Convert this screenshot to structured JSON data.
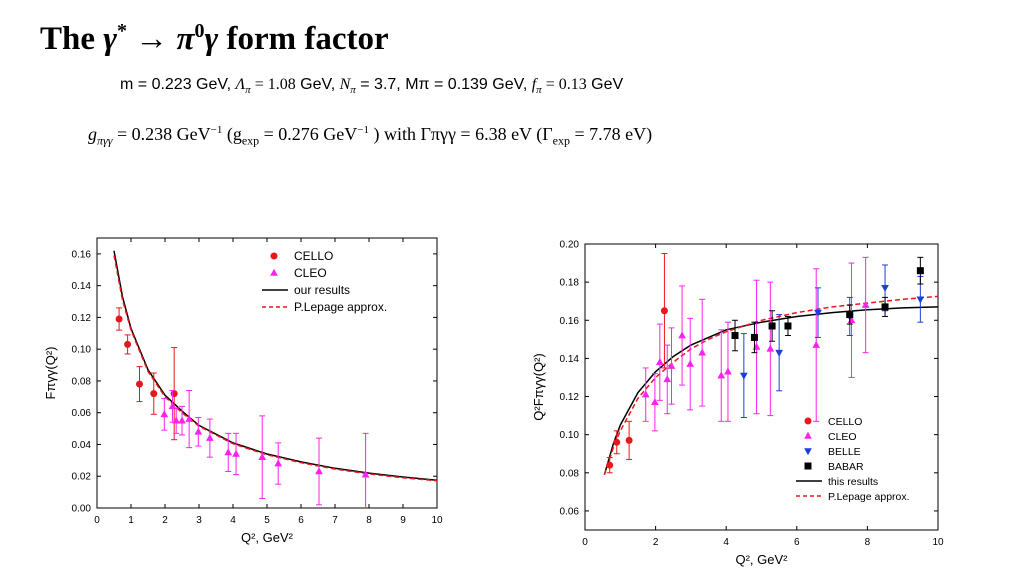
{
  "header": {
    "title_prefix": "The",
    "title_gamma_star": "γ",
    "title_star": "*",
    "title_arrow": "→",
    "title_pi": "π",
    "title_zero": "0",
    "title_gamma": "γ",
    "title_suffix": "form factor"
  },
  "params": {
    "m": "m = 0.223 GeV,",
    "lambda_sym": "Λ",
    "lambda_sub": "π",
    "lambda_val": " = 1.08",
    "lambda_unit": "GeV,",
    "n_sym": "N",
    "n_sub": "π",
    "n_val": " = 3.7,",
    "mpi": "Mπ = 0.139 GeV,",
    "f_sym": "f",
    "f_sub": "π",
    "f_val": " = 0.13",
    "f_unit": "GeV"
  },
  "coupling": {
    "g_sym": "g",
    "g_sub": "πγγ",
    "g_val": " = 0.238 GeV",
    "g_exp_sup": "−1",
    "gexp_open": " (g",
    "gexp_sub": "exp",
    "gexp_val": " = 0.276 GeV",
    "gexp_sup": "−1",
    "gamma_text": " ) with Γπγγ = 6.38 eV (Γ",
    "gamma_sub": "exp",
    "gamma_val": " = 7.78 eV)"
  },
  "chart_data": [
    {
      "type": "scatter",
      "title": "",
      "xlabel": "Q², GeV²",
      "ylabel": "Fπγγ(Q²)",
      "xlim": [
        0,
        10
      ],
      "ylim": [
        0,
        0.17
      ],
      "xticks": [
        "0",
        "1",
        "2",
        "3",
        "4",
        "5",
        "6",
        "7",
        "8",
        "9",
        "10"
      ],
      "yticks": [
        "0.00",
        "0.02",
        "0.04",
        "0.06",
        "0.08",
        "0.10",
        "0.12",
        "0.14",
        "0.16"
      ],
      "legend": [
        "CELLO",
        "CLEO",
        "our results",
        "P.Lepage approx."
      ],
      "legend_position": "top-right",
      "series": [
        {
          "name": "CELLO",
          "marker": "circle",
          "color": "#e8171c",
          "points": [
            [
              0.65,
              0.119,
              0.007
            ],
            [
              0.9,
              0.103,
              0.006
            ],
            [
              1.25,
              0.078,
              0.011
            ],
            [
              1.67,
              0.072,
              0.013
            ],
            [
              2.27,
              0.072,
              0.029
            ]
          ]
        },
        {
          "name": "CLEO",
          "marker": "triangle",
          "color": "#ff22ee",
          "points": [
            [
              1.98,
              0.059,
              0.01
            ],
            [
              2.22,
              0.064,
              0.01
            ],
            [
              2.33,
              0.055,
              0.008
            ],
            [
              2.5,
              0.055,
              0.009
            ],
            [
              2.71,
              0.056,
              0.018
            ],
            [
              2.98,
              0.048,
              0.009
            ],
            [
              3.32,
              0.044,
              0.012
            ],
            [
              3.86,
              0.035,
              0.012
            ],
            [
              4.09,
              0.034,
              0.013
            ],
            [
              4.86,
              0.032,
              0.026
            ],
            [
              5.33,
              0.028,
              0.013
            ],
            [
              6.53,
              0.023,
              0.021
            ],
            [
              7.9,
              0.021,
              0.026
            ]
          ]
        },
        {
          "name": "our results",
          "style": "solid",
          "color": "#000000",
          "points": [
            [
              0.5,
              0.162
            ],
            [
              0.75,
              0.133
            ],
            [
              1,
              0.113
            ],
            [
              1.5,
              0.087
            ],
            [
              2,
              0.071
            ],
            [
              2.5,
              0.061
            ],
            [
              3,
              0.052
            ],
            [
              4,
              0.041
            ],
            [
              5,
              0.034
            ],
            [
              6,
              0.029
            ],
            [
              7,
              0.025
            ],
            [
              8,
              0.022
            ],
            [
              9,
              0.0195
            ],
            [
              10,
              0.0175
            ]
          ]
        },
        {
          "name": "P.Lepage approx.",
          "style": "dashed",
          "color": "#e8171c",
          "points": [
            [
              0.5,
              0.159
            ],
            [
              0.75,
              0.131
            ],
            [
              1,
              0.112
            ],
            [
              1.5,
              0.086
            ],
            [
              2,
              0.07
            ],
            [
              2.5,
              0.06
            ],
            [
              3,
              0.0515
            ],
            [
              4,
              0.0405
            ],
            [
              5,
              0.0335
            ],
            [
              6,
              0.0285
            ],
            [
              7,
              0.0245
            ],
            [
              8,
              0.0215
            ],
            [
              9,
              0.019
            ],
            [
              10,
              0.0172
            ]
          ]
        }
      ]
    },
    {
      "type": "scatter",
      "title": "",
      "xlabel": "Q², GeV²",
      "ylabel": "Q²Fπγγ(Q²)",
      "xlim": [
        0,
        10
      ],
      "ylim": [
        0.05,
        0.2
      ],
      "xticks": [
        "0",
        "2",
        "4",
        "6",
        "8",
        "10"
      ],
      "yticks": [
        "0.06",
        "0.08",
        "0.10",
        "0.12",
        "0.14",
        "0.16",
        "0.18",
        "0.20"
      ],
      "legend": [
        "CELLO",
        "CLEO",
        "BELLE",
        "BABAR",
        "this results",
        "P.Lepage approx."
      ],
      "legend_position": "bottom-right",
      "series": [
        {
          "name": "CELLO",
          "marker": "circle",
          "color": "#e8171c",
          "points": [
            [
              0.7,
              0.084,
              0.004
            ],
            [
              0.9,
              0.096,
              0.006
            ],
            [
              1.25,
              0.097,
              0.01
            ],
            [
              2.25,
              0.165,
              0.03
            ]
          ]
        },
        {
          "name": "CLEO",
          "marker": "triangle",
          "color": "#ff22ee",
          "points": [
            [
              1.72,
              0.121,
              0.014
            ],
            [
              1.98,
              0.117,
              0.015
            ],
            [
              2.12,
              0.138,
              0.02
            ],
            [
              2.33,
              0.129,
              0.018
            ],
            [
              2.45,
              0.136,
              0.02
            ],
            [
              2.75,
              0.152,
              0.026
            ],
            [
              2.98,
              0.137,
              0.024
            ],
            [
              3.32,
              0.143,
              0.028
            ],
            [
              3.86,
              0.131,
              0.024
            ],
            [
              4.05,
              0.133,
              0.026
            ],
            [
              4.86,
              0.146,
              0.035
            ],
            [
              5.25,
              0.145,
              0.035
            ],
            [
              6.55,
              0.147,
              0.04
            ],
            [
              7.55,
              0.16,
              0.03
            ],
            [
              7.95,
              0.168,
              0.025
            ]
          ]
        },
        {
          "name": "BELLE",
          "marker": "triangle-down",
          "color": "#1d3fd8",
          "points": [
            [
              4.5,
              0.131,
              0.022
            ],
            [
              5.5,
              0.143,
              0.02
            ],
            [
              6.6,
              0.164,
              0.013
            ],
            [
              7.5,
              0.162,
              0.01
            ],
            [
              8.5,
              0.177,
              0.012
            ],
            [
              9.5,
              0.171,
              0.012
            ]
          ]
        },
        {
          "name": "BABAR",
          "marker": "square",
          "color": "#000000",
          "points": [
            [
              4.25,
              0.152,
              0.008
            ],
            [
              4.8,
              0.151,
              0.008
            ],
            [
              5.3,
              0.157,
              0.008
            ],
            [
              5.75,
              0.157,
              0.005
            ],
            [
              7.5,
              0.163,
              0.005
            ],
            [
              8.5,
              0.167,
              0.005
            ],
            [
              9.5,
              0.186,
              0.007
            ]
          ]
        },
        {
          "name": "this results",
          "style": "solid",
          "color": "#000000",
          "points": [
            [
              0.55,
              0.079
            ],
            [
              0.8,
              0.095
            ],
            [
              1,
              0.105
            ],
            [
              1.5,
              0.122
            ],
            [
              2,
              0.133
            ],
            [
              2.5,
              0.141
            ],
            [
              3,
              0.147
            ],
            [
              3.5,
              0.151
            ],
            [
              4,
              0.155
            ],
            [
              5,
              0.159
            ],
            [
              6,
              0.162
            ],
            [
              7,
              0.164
            ],
            [
              8,
              0.1655
            ],
            [
              9,
              0.1665
            ],
            [
              10,
              0.167
            ]
          ]
        },
        {
          "name": "P.Lepage approx.",
          "style": "dashed",
          "color": "#e8171c",
          "points": [
            [
              0.55,
              0.079
            ],
            [
              0.8,
              0.093
            ],
            [
              1,
              0.102
            ],
            [
              1.5,
              0.119
            ],
            [
              2,
              0.13
            ],
            [
              2.5,
              0.138
            ],
            [
              3,
              0.145
            ],
            [
              3.5,
              0.15
            ],
            [
              4,
              0.154
            ],
            [
              5,
              0.16
            ],
            [
              6,
              0.164
            ],
            [
              7,
              0.167
            ],
            [
              8,
              0.169
            ],
            [
              9,
              0.171
            ],
            [
              10,
              0.1725
            ]
          ]
        }
      ]
    }
  ]
}
